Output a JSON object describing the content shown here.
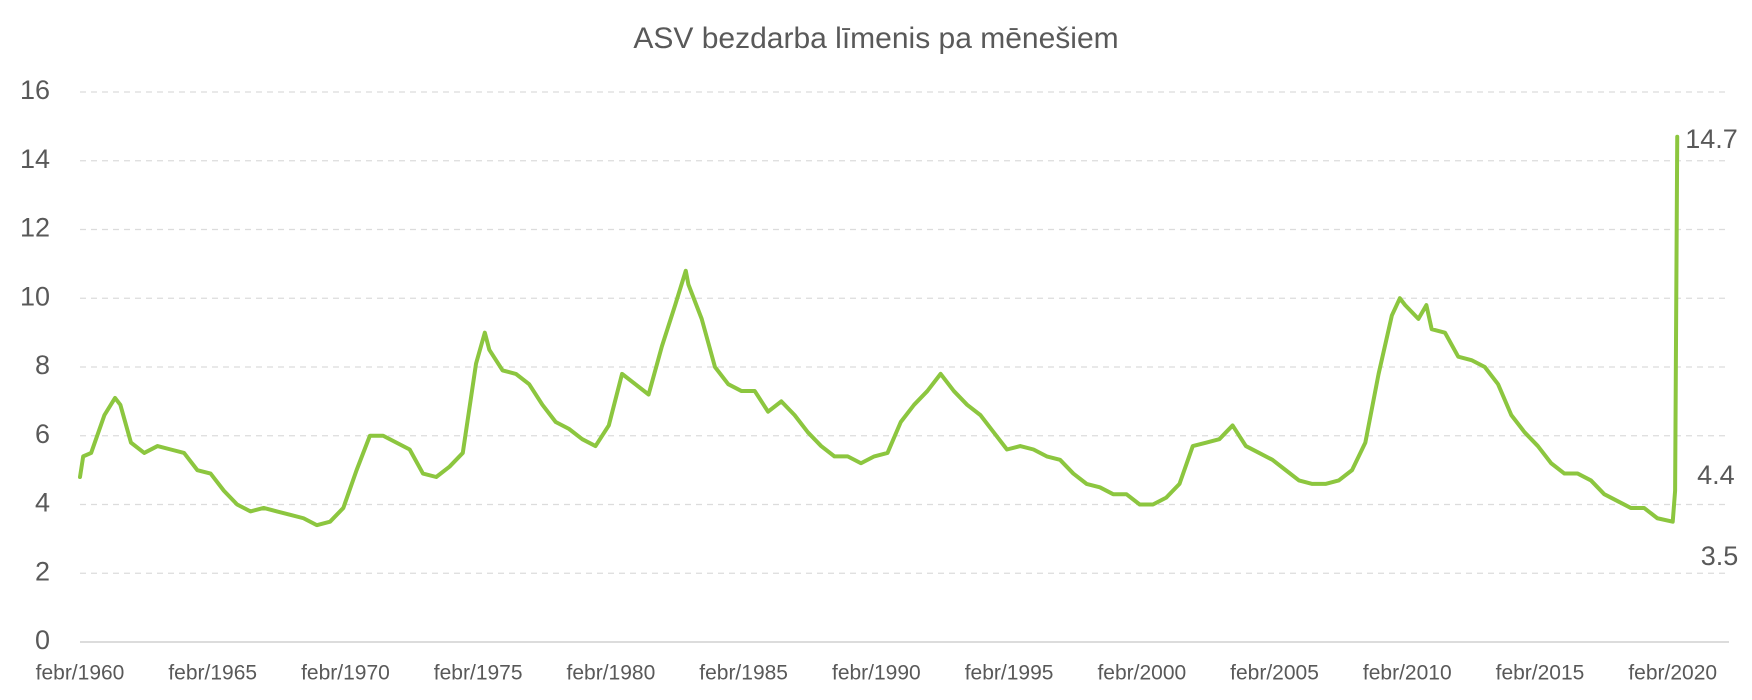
{
  "chart_data": {
    "type": "line",
    "title": "ASV bezdarba līmenis pa mēnešiem",
    "x": [
      1960.08,
      1960.2,
      1960.5,
      1961.0,
      1961.4,
      1961.6,
      1962.0,
      1962.5,
      1963.0,
      1963.5,
      1964.0,
      1964.5,
      1965.0,
      1965.5,
      1966.0,
      1966.5,
      1967.0,
      1967.5,
      1968.0,
      1968.5,
      1969.0,
      1969.5,
      1970.0,
      1970.5,
      1971.0,
      1971.5,
      1972.0,
      1972.5,
      1973.0,
      1973.5,
      1974.0,
      1974.5,
      1975.0,
      1975.33,
      1975.5,
      1976.0,
      1976.5,
      1977.0,
      1977.5,
      1978.0,
      1978.5,
      1979.0,
      1979.5,
      1980.0,
      1980.5,
      1981.0,
      1981.5,
      1982.0,
      1982.5,
      1982.9,
      1983.0,
      1983.5,
      1984.0,
      1984.5,
      1985.0,
      1985.5,
      1986.0,
      1986.5,
      1987.0,
      1987.5,
      1988.0,
      1988.5,
      1989.0,
      1989.5,
      1990.0,
      1990.5,
      1991.0,
      1991.5,
      1992.0,
      1992.5,
      1993.0,
      1993.5,
      1994.0,
      1994.5,
      1995.0,
      1995.5,
      1996.0,
      1996.5,
      1997.0,
      1997.5,
      1998.0,
      1998.5,
      1999.0,
      1999.5,
      2000.0,
      2000.5,
      2001.0,
      2001.5,
      2002.0,
      2002.5,
      2003.0,
      2003.5,
      2004.0,
      2004.5,
      2005.0,
      2005.5,
      2006.0,
      2006.5,
      2007.0,
      2007.5,
      2008.0,
      2008.5,
      2009.0,
      2009.5,
      2009.8,
      2010.0,
      2010.5,
      2010.8,
      2011.0,
      2011.5,
      2012.0,
      2012.5,
      2013.0,
      2013.5,
      2014.0,
      2014.5,
      2015.0,
      2015.5,
      2016.0,
      2016.5,
      2017.0,
      2017.5,
      2018.0,
      2018.5,
      2019.0,
      2019.5,
      2020.08,
      2020.17,
      2020.25
    ],
    "series": [
      {
        "color": "#8cc63f",
        "values": [
          4.8,
          5.4,
          5.5,
          6.6,
          7.1,
          6.9,
          5.8,
          5.5,
          5.7,
          5.6,
          5.5,
          5.0,
          4.9,
          4.4,
          4.0,
          3.8,
          3.9,
          3.8,
          3.7,
          3.6,
          3.4,
          3.5,
          3.9,
          5.0,
          6.0,
          6.0,
          5.8,
          5.6,
          4.9,
          4.8,
          5.1,
          5.5,
          8.1,
          9.0,
          8.5,
          7.9,
          7.8,
          7.5,
          6.9,
          6.4,
          6.2,
          5.9,
          5.7,
          6.3,
          7.8,
          7.5,
          7.2,
          8.6,
          9.8,
          10.8,
          10.4,
          9.4,
          8.0,
          7.5,
          7.3,
          7.3,
          6.7,
          7.0,
          6.6,
          6.1,
          5.7,
          5.4,
          5.4,
          5.2,
          5.4,
          5.5,
          6.4,
          6.9,
          7.3,
          7.8,
          7.3,
          6.9,
          6.6,
          6.1,
          5.6,
          5.7,
          5.6,
          5.4,
          5.3,
          4.9,
          4.6,
          4.5,
          4.3,
          4.3,
          4.0,
          4.0,
          4.2,
          4.6,
          5.7,
          5.8,
          5.9,
          6.3,
          5.7,
          5.5,
          5.3,
          5.0,
          4.7,
          4.6,
          4.6,
          4.7,
          5.0,
          5.8,
          7.8,
          9.5,
          10.0,
          9.8,
          9.4,
          9.8,
          9.1,
          9.0,
          8.3,
          8.2,
          8.0,
          7.5,
          6.6,
          6.1,
          5.7,
          5.2,
          4.9,
          4.9,
          4.7,
          4.3,
          4.1,
          3.9,
          3.9,
          3.6,
          3.5,
          4.4,
          14.7
        ]
      }
    ],
    "xlim": [
      1960.08,
      2022.2
    ],
    "xticks": [
      {
        "value": 1960.08,
        "label": "febr/1960"
      },
      {
        "value": 1965.08,
        "label": "febr/1965"
      },
      {
        "value": 1970.08,
        "label": "febr/1970"
      },
      {
        "value": 1975.08,
        "label": "febr/1975"
      },
      {
        "value": 1980.08,
        "label": "febr/1980"
      },
      {
        "value": 1985.08,
        "label": "febr/1985"
      },
      {
        "value": 1990.08,
        "label": "febr/1990"
      },
      {
        "value": 1995.08,
        "label": "febr/1995"
      },
      {
        "value": 2000.08,
        "label": "febr/2000"
      },
      {
        "value": 2005.08,
        "label": "febr/2005"
      },
      {
        "value": 2010.08,
        "label": "febr/2010"
      },
      {
        "value": 2015.08,
        "label": "febr/2015"
      },
      {
        "value": 2020.08,
        "label": "febr/2020"
      }
    ],
    "ylim": [
      0,
      16
    ],
    "yticks": [
      0,
      2,
      4,
      6,
      8,
      10,
      12,
      14,
      16
    ],
    "grid": true
  }
}
